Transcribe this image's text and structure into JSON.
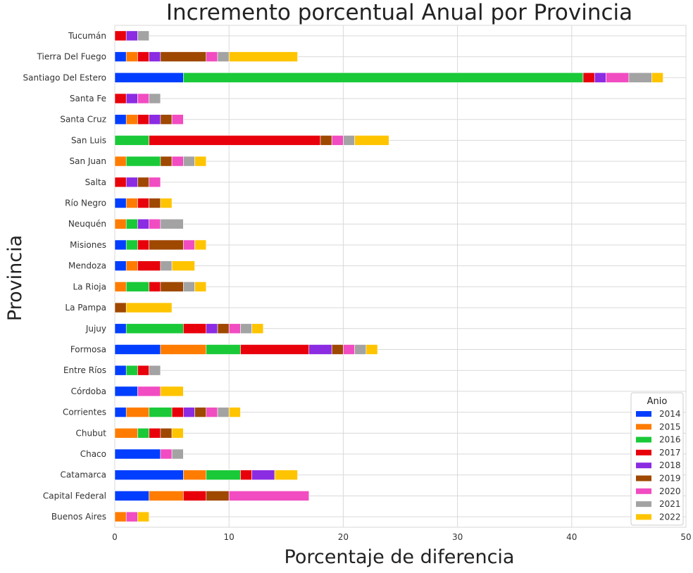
{
  "chart_data": {
    "type": "bar",
    "orientation": "horizontal",
    "stacked": true,
    "title": "Incremento porcentual Anual por Provincia",
    "xlabel": "Porcentaje de diferencia",
    "ylabel": "Provincia",
    "xlim": [
      0,
      50
    ],
    "xticks": [
      0,
      10,
      20,
      30,
      40,
      50
    ],
    "grid": true,
    "legend": {
      "title": "Anio",
      "placement": "bottom-right"
    },
    "categories": [
      "Tucumán",
      "Tierra Del Fuego",
      "Santiago Del Estero",
      "Santa Fe",
      "Santa Cruz",
      "San Luis",
      "San Juan",
      "Salta",
      "Río Negro",
      "Neuquén",
      "Misiones",
      "Mendoza",
      "La Rioja",
      "La Pampa",
      "Jujuy",
      "Formosa",
      "Entre Ríos",
      "Córdoba",
      "Corrientes",
      "Chubut",
      "Chaco",
      "Catamarca",
      "Capital Federal",
      "Buenos Aires"
    ],
    "series": [
      {
        "name": "2014",
        "color": "#023eff",
        "values": [
          0,
          1,
          6,
          0,
          1,
          0,
          0,
          0,
          1,
          0,
          1,
          1,
          0,
          0,
          1,
          4,
          1,
          2,
          1,
          0,
          4,
          6,
          3,
          0
        ]
      },
      {
        "name": "2015",
        "color": "#ff7c00",
        "values": [
          0,
          1,
          0,
          0,
          1,
          0,
          1,
          0,
          1,
          1,
          0,
          1,
          1,
          0,
          0,
          4,
          0,
          0,
          2,
          2,
          0,
          2,
          3,
          1
        ]
      },
      {
        "name": "2016",
        "color": "#1ac938",
        "values": [
          0,
          0,
          35,
          0,
          0,
          3,
          3,
          0,
          0,
          1,
          1,
          0,
          2,
          0,
          5,
          3,
          1,
          0,
          2,
          1,
          0,
          3,
          0,
          0
        ]
      },
      {
        "name": "2017",
        "color": "#e8000b",
        "values": [
          1,
          1,
          1,
          1,
          1,
          15,
          0,
          1,
          1,
          0,
          1,
          2,
          1,
          0,
          2,
          6,
          1,
          0,
          1,
          1,
          0,
          1,
          2,
          0
        ]
      },
      {
        "name": "2018",
        "color": "#8b2be2",
        "values": [
          1,
          1,
          1,
          1,
          1,
          0,
          0,
          1,
          0,
          1,
          0,
          0,
          0,
          0,
          1,
          2,
          0,
          0,
          1,
          0,
          0,
          2,
          0,
          0
        ]
      },
      {
        "name": "2019",
        "color": "#9f4800",
        "values": [
          0,
          4,
          0,
          0,
          1,
          1,
          1,
          1,
          1,
          0,
          3,
          0,
          2,
          1,
          1,
          1,
          0,
          0,
          1,
          1,
          0,
          0,
          2,
          0
        ]
      },
      {
        "name": "2020",
        "color": "#f14cc1",
        "values": [
          0,
          1,
          2,
          1,
          1,
          1,
          1,
          1,
          0,
          1,
          1,
          0,
          0,
          0,
          1,
          1,
          0,
          2,
          1,
          0,
          1,
          0,
          7,
          1
        ]
      },
      {
        "name": "2021",
        "color": "#a3a3a3",
        "values": [
          1,
          1,
          2,
          1,
          0,
          1,
          1,
          0,
          0,
          2,
          0,
          1,
          1,
          0,
          1,
          1,
          1,
          0,
          1,
          0,
          1,
          0,
          0,
          0
        ]
      },
      {
        "name": "2022",
        "color": "#ffc400",
        "values": [
          0,
          6,
          1,
          0,
          0,
          3,
          1,
          0,
          1,
          0,
          1,
          2,
          1,
          4,
          1,
          1,
          0,
          2,
          1,
          1,
          0,
          2,
          0,
          1
        ]
      }
    ]
  }
}
